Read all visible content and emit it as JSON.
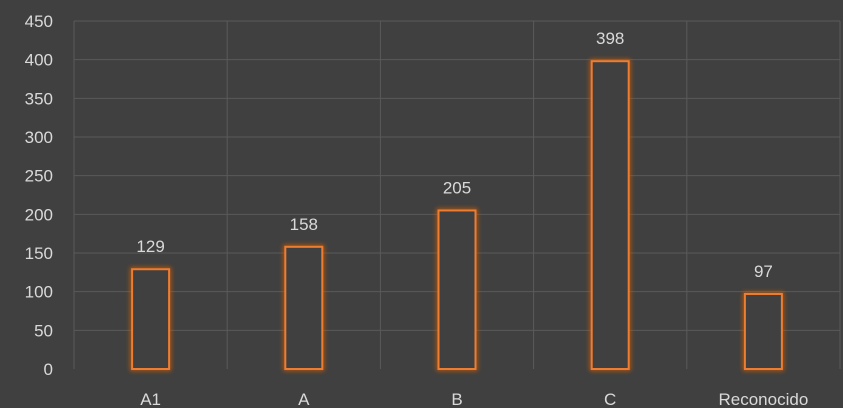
{
  "chart_data": {
    "type": "bar",
    "categories": [
      "A1",
      "A",
      "B",
      "C",
      "Reconocido"
    ],
    "values": [
      129,
      158,
      205,
      398,
      97
    ],
    "data_labels": [
      "129",
      "158",
      "205",
      "398",
      "97"
    ],
    "title": "",
    "xlabel": "",
    "ylabel": "",
    "ylim": [
      0,
      450
    ],
    "yticks": [
      0,
      50,
      100,
      150,
      200,
      250,
      300,
      350,
      400,
      450
    ],
    "ytick_labels": [
      "0",
      "50",
      "100",
      "150",
      "200",
      "250",
      "300",
      "350",
      "400",
      "450"
    ],
    "grid": true,
    "legend": "none",
    "colors": {
      "background": "#404040",
      "bar_outline": "#ed7d31",
      "bar_glow": "#c55a11",
      "bar_fill": "#404040",
      "gridline": "#5a5a5a",
      "text": "#d9d9d9"
    }
  }
}
